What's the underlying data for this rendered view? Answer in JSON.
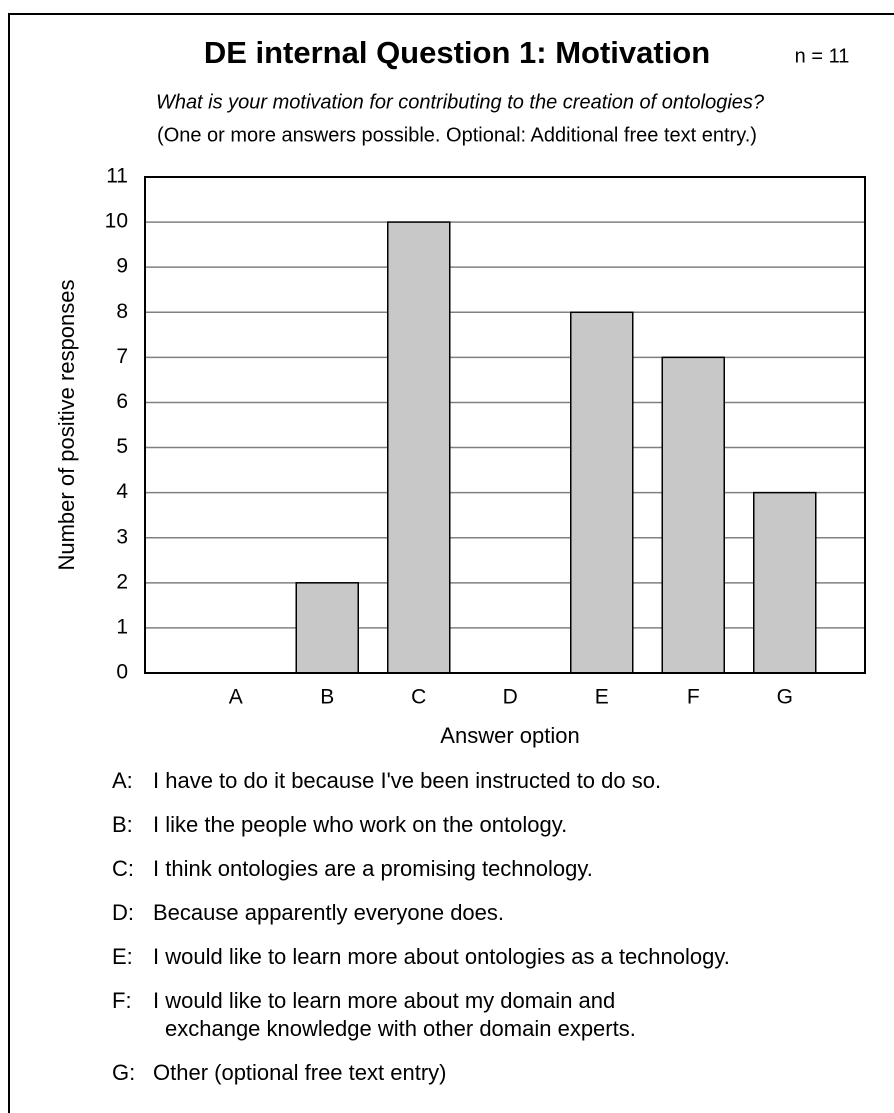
{
  "chart_data": {
    "type": "bar",
    "title": "DE internal Question 1: Motivation",
    "annotation": "n = 11",
    "subtitle": "What is your motivation for contributing to the creation of ontologies?",
    "subtitle2": "(One or more answers possible. Optional: Additional free text entry.)",
    "x_label": "Answer option",
    "y_label": "Number of positive responses",
    "categories": [
      "A",
      "B",
      "C",
      "D",
      "E",
      "F",
      "G"
    ],
    "values": [
      0,
      2,
      10,
      0,
      8,
      7,
      4
    ],
    "color": "#c8c8c8",
    "ylim": [
      0,
      11
    ],
    "yticks": [
      0,
      1,
      2,
      3,
      4,
      5,
      6,
      7,
      8,
      9,
      10,
      11
    ],
    "grid": true,
    "notes": [
      {
        "key": "A:",
        "lines": [
          "I have to do it because I've been instructed to do so."
        ]
      },
      {
        "key": "B:",
        "lines": [
          "I like the people who work on the ontology."
        ]
      },
      {
        "key": "C:",
        "lines": [
          "I think ontologies are a promising technology."
        ]
      },
      {
        "key": "D:",
        "lines": [
          "Because apparently everyone does."
        ]
      },
      {
        "key": "E:",
        "lines": [
          "I would like to learn more about ontologies as a technology."
        ]
      },
      {
        "key": "F:",
        "lines": [
          "I would like to learn more about my domain and",
          "exchange knowledge with other domain experts."
        ]
      },
      {
        "key": "G:",
        "lines": [
          "Other (optional free text entry)"
        ]
      }
    ]
  }
}
